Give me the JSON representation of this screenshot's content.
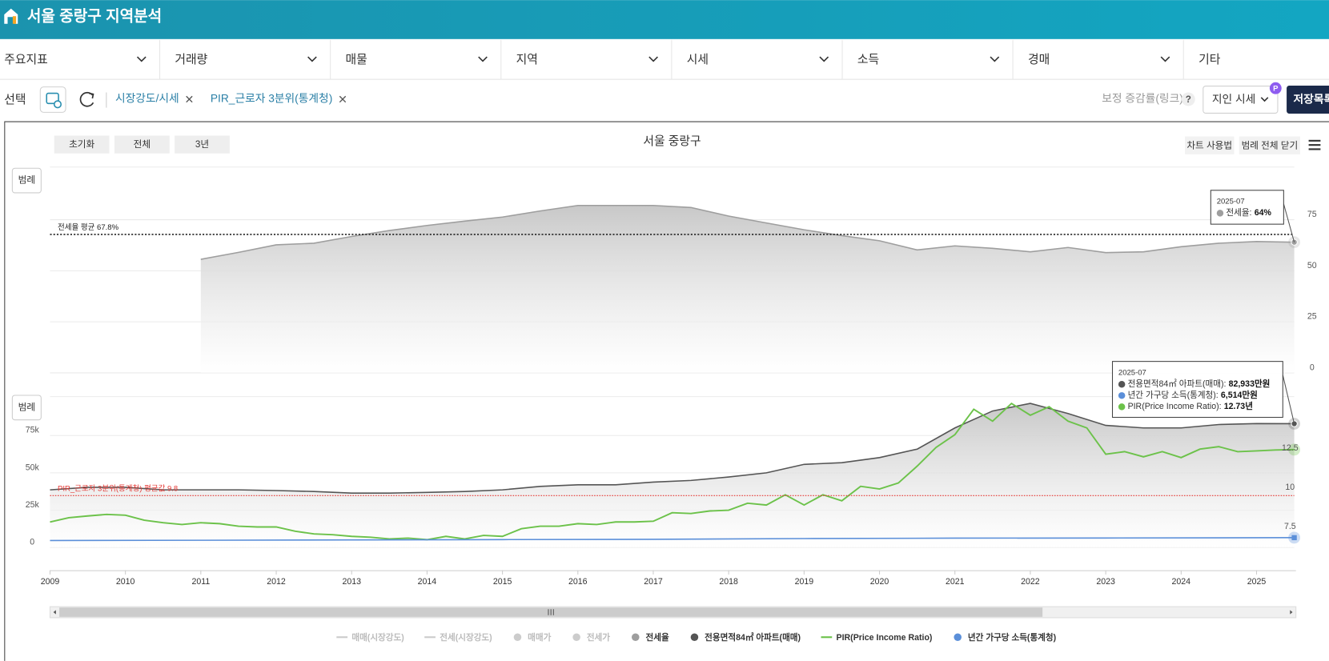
{
  "header": {
    "title": "서울 중랑구 지역분석"
  },
  "nav": [
    "주요지표",
    "거래량",
    "매물",
    "지역",
    "시세",
    "소득",
    "경매",
    "기타"
  ],
  "selection": {
    "label": "선택",
    "chips": [
      "시장강도/시세",
      "PIR_근로자 3분위(통계청)"
    ],
    "link": "보정 증감률(링크)",
    "help": "?",
    "dropdown": "지인 시세",
    "badge": "P",
    "save": "저장목록"
  },
  "toolbar": {
    "buttons": [
      "초기화",
      "전체",
      "3년"
    ],
    "title": "서울 중랑구",
    "right_buttons": [
      "차트 사용법",
      "범례 전체 닫기"
    ],
    "legend_button": "범례"
  },
  "legend": {
    "hidden": [
      {
        "name": "매매(시장강도)",
        "marker": "line"
      },
      {
        "name": "전세(시장강도)",
        "marker": "line"
      },
      {
        "name": "매매가",
        "marker": "dot"
      },
      {
        "name": "전세가",
        "marker": "dot"
      }
    ]
  },
  "chart_data": [
    {
      "type": "area",
      "xlim": [
        2009,
        2025.5
      ],
      "ylim": [
        0,
        100
      ],
      "yticks": [
        0,
        25,
        50,
        75
      ],
      "grid": true,
      "series": [
        {
          "name": "전세율",
          "color": "#9e9e9e",
          "marker": "dot",
          "x": [
            2011,
            2011.5,
            2012,
            2012.5,
            2013,
            2013.5,
            2014,
            2014.5,
            2015,
            2015.5,
            2016,
            2016.5,
            2017,
            2017.5,
            2018,
            2018.5,
            2019,
            2019.5,
            2020,
            2020.5,
            2021,
            2021.5,
            2022,
            2022.5,
            2023,
            2023.5,
            2024,
            2024.5,
            2025,
            2025.5
          ],
          "values": [
            55.6,
            59,
            62.7,
            63.5,
            66.8,
            69.7,
            72.2,
            74.3,
            76.3,
            79.3,
            82,
            82,
            82,
            81,
            76.8,
            73.4,
            70.1,
            67.2,
            64.7,
            60.2,
            62.2,
            61,
            59.3,
            61.4,
            58.9,
            59.3,
            61.8,
            63.5,
            64.3,
            64
          ]
        }
      ],
      "reference_line": {
        "label": "전세율 평균 67.8%",
        "value": 67.8,
        "color": "#222222"
      },
      "tooltip": {
        "date": "2025-07",
        "items": [
          {
            "series": 0,
            "label": "전세율:",
            "value_label": "64%"
          }
        ]
      }
    },
    {
      "type": "line",
      "xlim": [
        2009,
        2025.5
      ],
      "xticks": [
        2009,
        2010,
        2011,
        2012,
        2013,
        2014,
        2015,
        2016,
        2017,
        2018,
        2019,
        2020,
        2021,
        2022,
        2023,
        2024,
        2025
      ],
      "ylim": [
        0,
        100000
      ],
      "yticks": [
        0,
        {
          "value": 25000,
          "label": "25k"
        },
        {
          "value": 50000,
          "label": "50k"
        },
        {
          "value": 75000,
          "label": "75k"
        }
      ],
      "y2lim": [
        6.5,
        16
      ],
      "y2ticks": [
        7.5,
        10,
        12.5
      ],
      "grid": true,
      "series": [
        {
          "name": "전용면적84㎡ 아파트(매매)",
          "color": "#555555",
          "marker": "dot",
          "fill": true,
          "x": [
            2009,
            2009.5,
            2010,
            2010.5,
            2011,
            2011.5,
            2012,
            2012.5,
            2013,
            2013.5,
            2014,
            2014.5,
            2015,
            2015.5,
            2016,
            2016.5,
            2017,
            2017.5,
            2018,
            2018.5,
            2019,
            2019.5,
            2020,
            2020.5,
            2021,
            2021.5,
            2022,
            2022.5,
            2023,
            2023.5,
            2024,
            2024.5,
            2025,
            2025.5
          ],
          "values": [
            38600,
            40300,
            40300,
            38600,
            38600,
            38600,
            38100,
            37500,
            36400,
            36400,
            36900,
            37500,
            38600,
            40900,
            42000,
            42000,
            43800,
            44900,
            47200,
            50000,
            55700,
            56800,
            60200,
            65900,
            80100,
            91500,
            96600,
            89800,
            81800,
            80100,
            80100,
            82400,
            83000,
            82933
          ]
        },
        {
          "name": "PIR(Price Income Ratio)",
          "color": "#6cc24a",
          "marker": "line",
          "axis": "y2",
          "x": [
            2009,
            2009.25,
            2009.5,
            2009.75,
            2010,
            2010.25,
            2010.5,
            2010.75,
            2011,
            2011.25,
            2011.5,
            2011.75,
            2012,
            2012.25,
            2012.5,
            2012.75,
            2013,
            2013.25,
            2013.5,
            2013.75,
            2014,
            2014.25,
            2014.5,
            2014.75,
            2015,
            2015.25,
            2015.5,
            2015.75,
            2016,
            2016.25,
            2016.5,
            2016.75,
            2017,
            2017.25,
            2017.5,
            2017.75,
            2018,
            2018.25,
            2018.5,
            2018.75,
            2019,
            2019.25,
            2019.5,
            2019.75,
            2020,
            2020.25,
            2020.5,
            2020.75,
            2021,
            2021.25,
            2021.5,
            2021.75,
            2022,
            2022.25,
            2022.5,
            2022.75,
            2023,
            2023.25,
            2023.5,
            2023.75,
            2024,
            2024.25,
            2024.5,
            2024.75,
            2025,
            2025.25,
            2025.5
          ],
          "values": [
            8.12,
            8.39,
            8.5,
            8.6,
            8.55,
            8.23,
            8.07,
            7.96,
            8.07,
            8.01,
            7.85,
            7.8,
            7.8,
            7.53,
            7.36,
            7.31,
            7.2,
            7.15,
            7.04,
            7.09,
            6.99,
            7.2,
            7.04,
            7.26,
            7.2,
            7.69,
            7.85,
            7.85,
            8.01,
            7.96,
            8.12,
            8.12,
            8.17,
            8.71,
            8.66,
            8.82,
            8.87,
            9.31,
            9.2,
            9.85,
            9.2,
            9.85,
            9.47,
            10.39,
            10.22,
            10.6,
            11.68,
            12.87,
            13.68,
            15.3,
            14.54,
            15.67,
            14.92,
            15.46,
            14.54,
            14.11,
            12.44,
            12.6,
            12.27,
            12.6,
            12.22,
            12.76,
            12.92,
            12.6,
            12.65,
            12.71,
            12.73
          ]
        },
        {
          "name": "년간 가구당 소득(통계청)",
          "color": "#5b8fd9",
          "marker": "dot",
          "x": [
            2009,
            2011,
            2013,
            2015,
            2017,
            2019,
            2021,
            2023,
            2025,
            2025.5
          ],
          "values": [
            4600,
            4800,
            5000,
            5200,
            5400,
            5900,
            6200,
            6300,
            6500,
            6514
          ]
        }
      ],
      "reference_line": {
        "label": "PIR_근로자 3분위(통계청) 평균값 9.8",
        "value": 9.8,
        "axis": "y2",
        "color": "#e53935"
      },
      "tooltip": {
        "date": "2025-07",
        "items": [
          {
            "series": 0,
            "label": "전용면적84㎡ 아파트(매매):",
            "value_label": "82,933만원"
          },
          {
            "series": 2,
            "label": "년간 가구당 소득(통계청):",
            "value_label": "6,514만원"
          },
          {
            "series": 1,
            "label": "PIR(Price Income Ratio):",
            "value_label": "12.73년"
          }
        ]
      }
    }
  ]
}
